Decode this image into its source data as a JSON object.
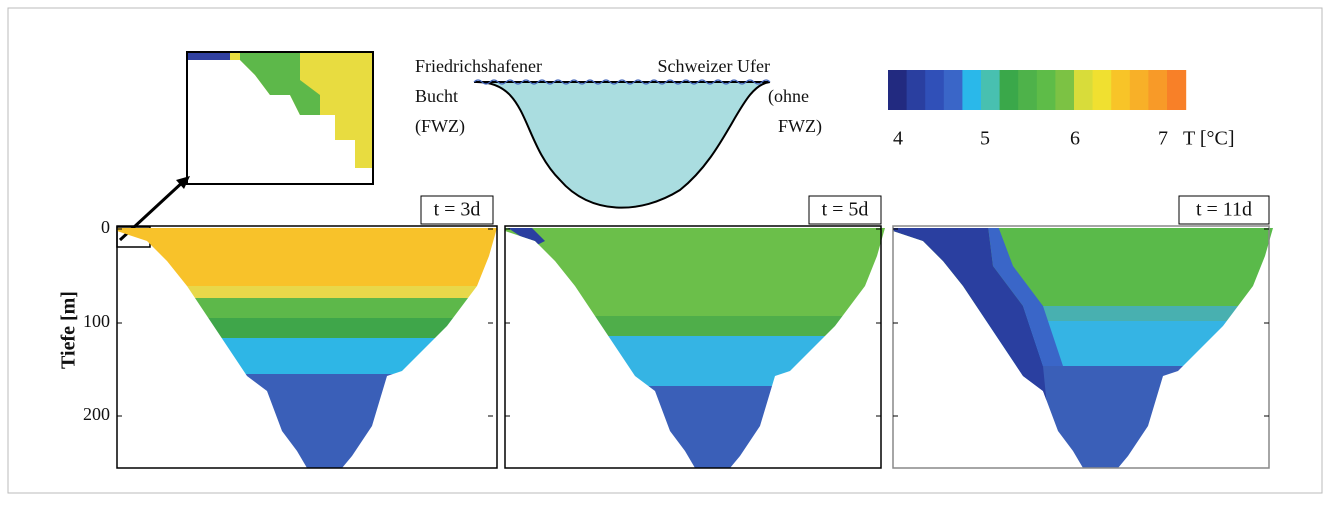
{
  "schematic": {
    "left_label": [
      "Friedrichshafener",
      "Bucht",
      "(FWZ)"
    ],
    "right_label": [
      "Schweizer Ufer",
      "(ohne",
      "FWZ)"
    ]
  },
  "colorbar": {
    "ticks": [
      "4",
      "5",
      "6",
      "7"
    ],
    "label": "T [°C]"
  },
  "y_axis": {
    "label": "Tiefe [m]",
    "ticks": [
      "0",
      "100",
      "200"
    ]
  },
  "panels": [
    {
      "title": "t = 3d"
    },
    {
      "title": "t = 5d"
    },
    {
      "title": "t = 11d"
    }
  ]
}
